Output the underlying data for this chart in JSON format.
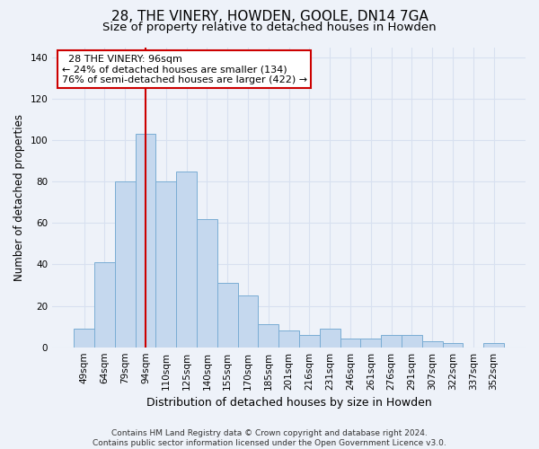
{
  "title": "28, THE VINERY, HOWDEN, GOOLE, DN14 7GA",
  "subtitle": "Size of property relative to detached houses in Howden",
  "xlabel": "Distribution of detached houses by size in Howden",
  "ylabel": "Number of detached properties",
  "categories": [
    "49sqm",
    "64sqm",
    "79sqm",
    "94sqm",
    "110sqm",
    "125sqm",
    "140sqm",
    "155sqm",
    "170sqm",
    "185sqm",
    "201sqm",
    "216sqm",
    "231sqm",
    "246sqm",
    "261sqm",
    "276sqm",
    "291sqm",
    "307sqm",
    "322sqm",
    "337sqm",
    "352sqm"
  ],
  "values": [
    9,
    41,
    80,
    103,
    80,
    85,
    62,
    31,
    25,
    11,
    8,
    6,
    9,
    4,
    4,
    6,
    6,
    3,
    2,
    0,
    2
  ],
  "bar_color": "#c5d8ee",
  "bar_edge_color": "#7aadd4",
  "background_color": "#eef2f9",
  "grid_color": "#d8e0f0",
  "property_label": "28 THE VINERY: 96sqm",
  "smaller_pct": 24,
  "smaller_count": 134,
  "larger_pct": 76,
  "larger_count": 422,
  "vline_color": "#cc0000",
  "vline_position": 3.0,
  "annotation_box_color": "#ffffff",
  "annotation_box_edge": "#cc0000",
  "ylim": [
    0,
    145
  ],
  "yticks": [
    0,
    20,
    40,
    60,
    80,
    100,
    120,
    140
  ],
  "footnote": "Contains HM Land Registry data © Crown copyright and database right 2024.\nContains public sector information licensed under the Open Government Licence v3.0.",
  "title_fontsize": 11,
  "subtitle_fontsize": 9.5,
  "xlabel_fontsize": 9,
  "ylabel_fontsize": 8.5,
  "tick_fontsize": 7.5,
  "annot_fontsize": 8,
  "footnote_fontsize": 6.5
}
